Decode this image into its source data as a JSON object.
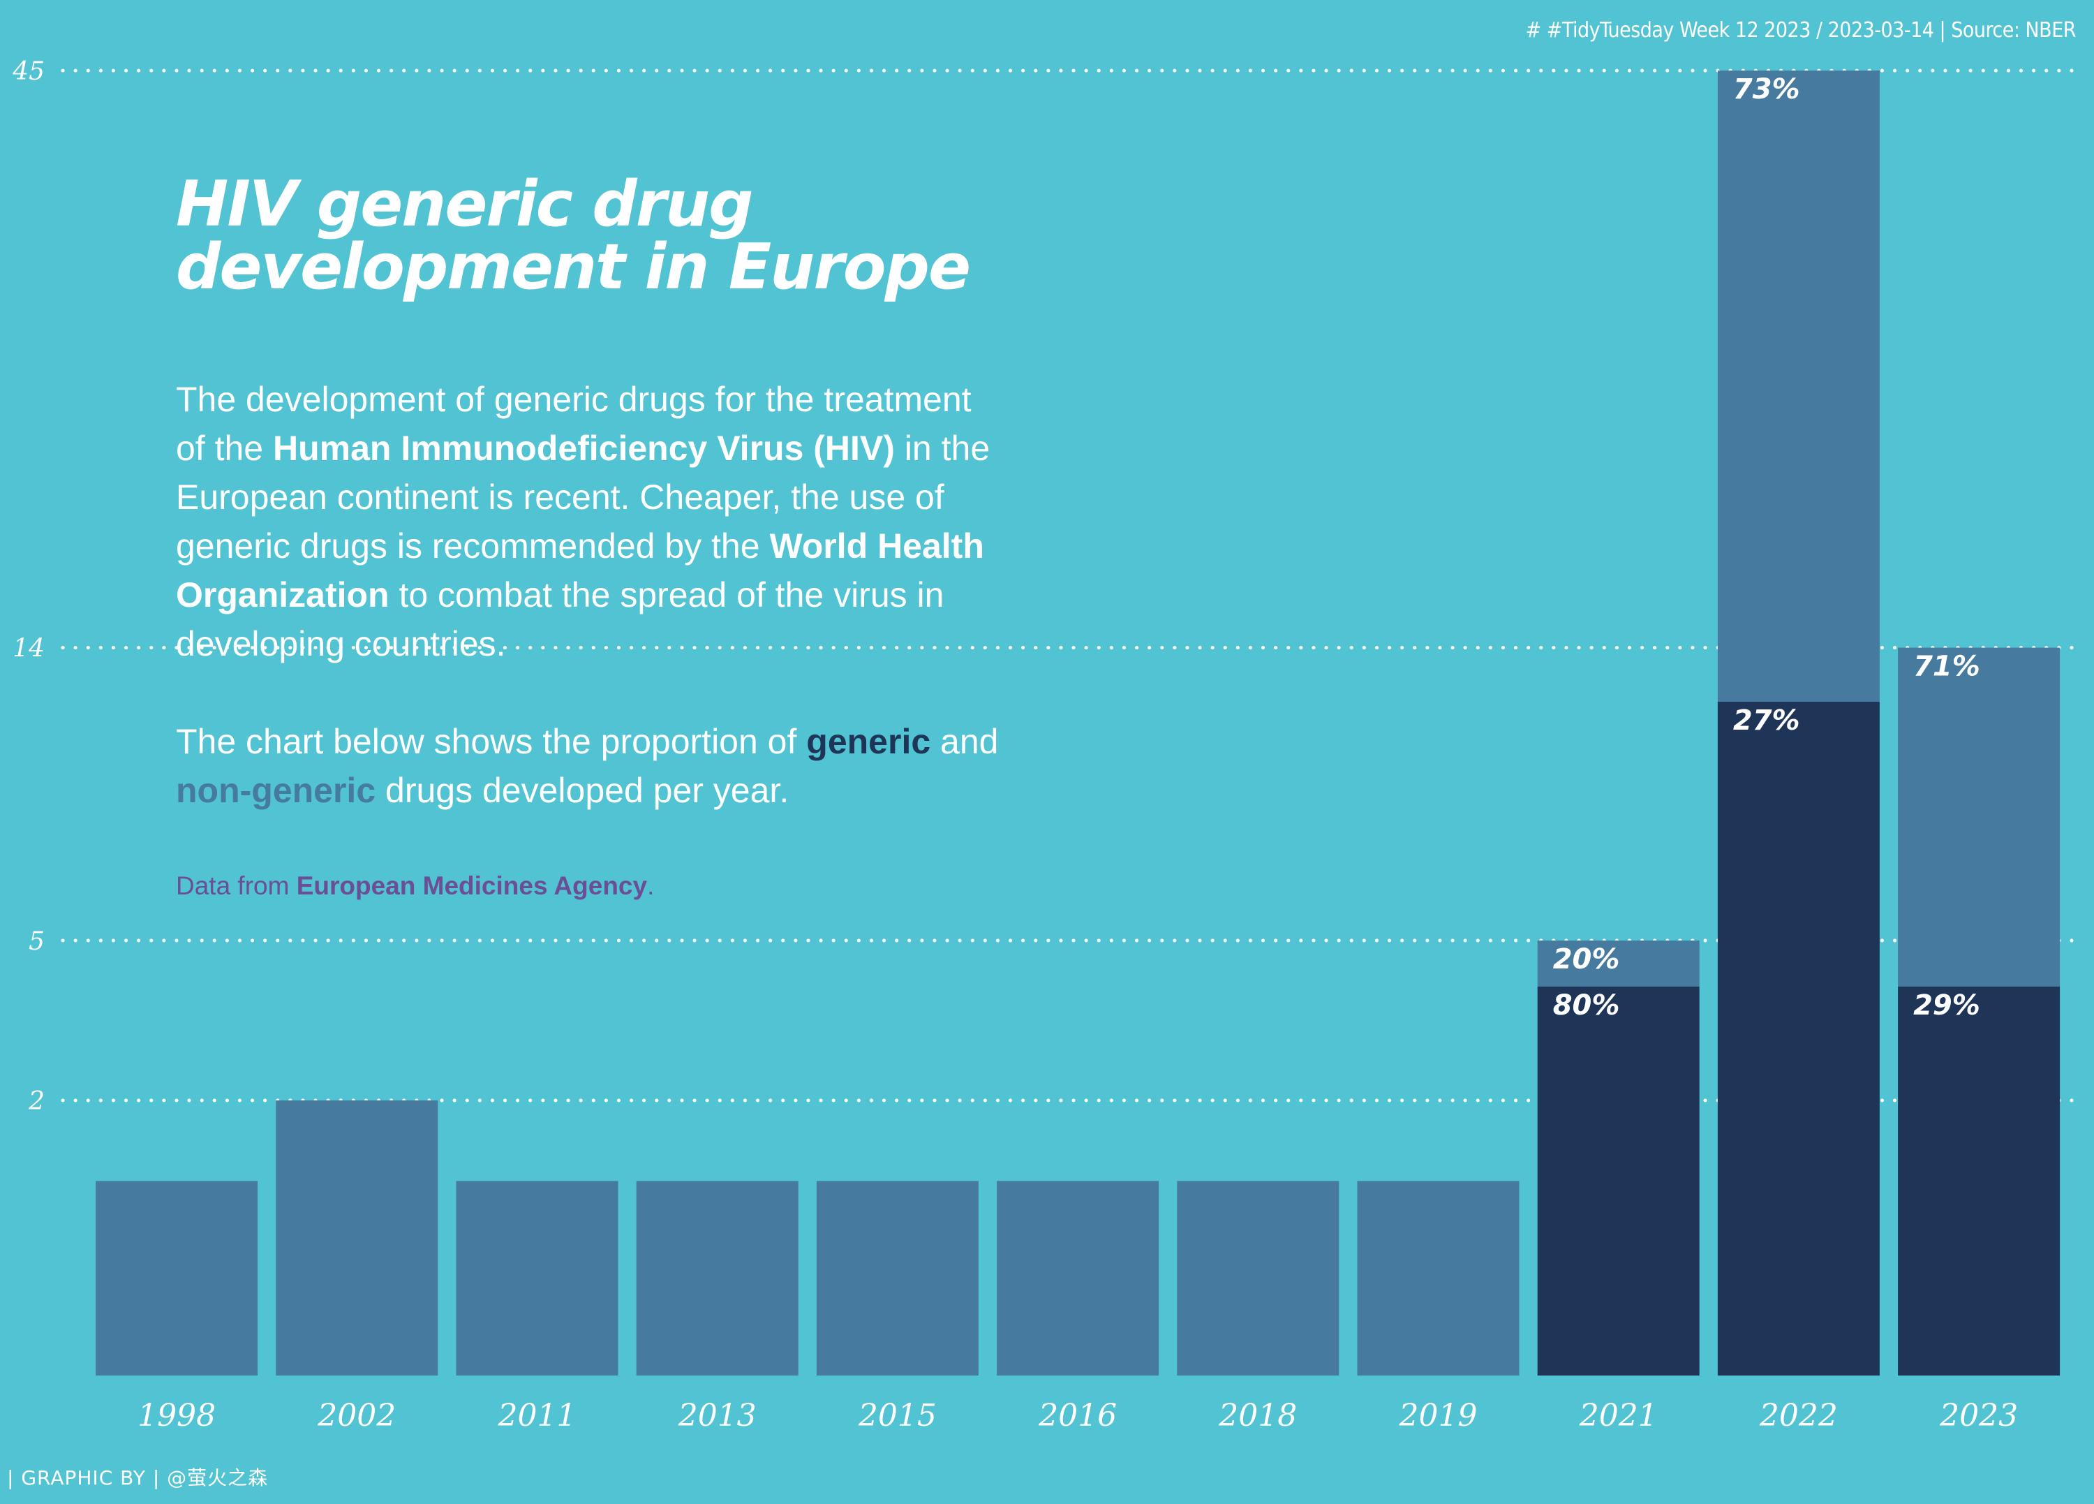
{
  "caption": "# #TidyTuesday Week 12 2023 / 2023-03-14 | Source: NBER",
  "title": {
    "line1": "HIV  generic drug",
    "line2": "development in Europe"
  },
  "description": {
    "p1_l1": "The development of generic drugs for the treatment",
    "p1_l2_pre": "of the ",
    "p1_l2_bold": "Human Immunodeficiency Virus (HIV)",
    "p1_l2_post": " in the",
    "p1_l3": "European continent is recent. Cheaper, the use of",
    "p1_l4_pre": "generic drugs is recommended by the ",
    "p1_l4_bold": "World Health",
    "p1_l5_bold": "Organization",
    "p1_l5_post": " to combat the spread of the virus in",
    "p1_l6": "developing countries.",
    "p2_l1_pre": "The chart below shows the proportion of ",
    "p2_l1_generic": "generic",
    "p2_l1_post": " and",
    "p2_l2_nongeneric": "non-generic",
    "p2_l2_post": " drugs developed per year."
  },
  "source_note": {
    "pre": "Data from ",
    "bold": "European Medicines Agency",
    "post": "."
  },
  "credit": "| GRAPHIC BY  |  @萤火之森",
  "colors": {
    "background": "#52c3d3",
    "generic": "#1e3557",
    "non_generic": "#467a9e",
    "text": "#ffffff",
    "source_note": "#6b4e95"
  },
  "chart_data": {
    "type": "bar",
    "stacked": true,
    "y_scale": "sqrt",
    "categories": [
      "1998",
      "2002",
      "2011",
      "2013",
      "2015",
      "2016",
      "2018",
      "2019",
      "2021",
      "2022",
      "2023"
    ],
    "y_ticks": [
      2,
      5,
      14,
      45
    ],
    "grid": true,
    "totals": [
      1,
      2,
      1,
      1,
      1,
      1,
      1,
      1,
      5,
      45,
      14
    ],
    "series": [
      {
        "key": "generic",
        "color": "#1e3557",
        "values": [
          0,
          0,
          0,
          0,
          0,
          0,
          0,
          0,
          4,
          12,
          4
        ],
        "labels": [
          "",
          "",
          "",
          "",
          "",
          "",
          "",
          "",
          "80%",
          "27%",
          "29%"
        ]
      },
      {
        "key": "non-generic",
        "color": "#467a9e",
        "values": [
          1,
          2,
          1,
          1,
          1,
          1,
          1,
          1,
          1,
          33,
          10
        ],
        "labels": [
          "",
          "",
          "",
          "",
          "",
          "",
          "",
          "",
          "20%",
          "73%",
          "71%"
        ]
      }
    ]
  }
}
